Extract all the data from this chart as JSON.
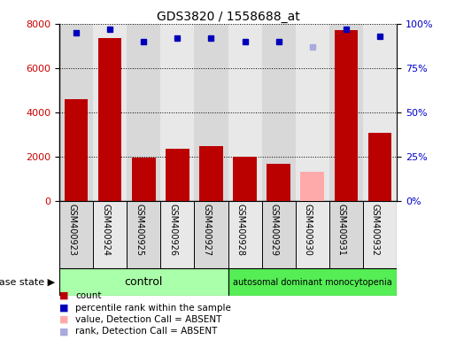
{
  "title": "GDS3820 / 1558688_at",
  "samples": [
    "GSM400923",
    "GSM400924",
    "GSM400925",
    "GSM400926",
    "GSM400927",
    "GSM400928",
    "GSM400929",
    "GSM400930",
    "GSM400931",
    "GSM400932"
  ],
  "count_values": [
    4600,
    7350,
    1950,
    2350,
    2450,
    2000,
    1650,
    null,
    7700,
    3050
  ],
  "count_absent_values": [
    null,
    null,
    null,
    null,
    null,
    null,
    null,
    1300,
    null,
    null
  ],
  "percentile_values": [
    95,
    97,
    90,
    92,
    92,
    90,
    90,
    null,
    97,
    93
  ],
  "percentile_absent_values": [
    null,
    null,
    null,
    null,
    null,
    null,
    null,
    87,
    null,
    null
  ],
  "ylim_left": [
    0,
    8000
  ],
  "ylim_right": [
    0,
    100
  ],
  "yticks_left": [
    0,
    2000,
    4000,
    6000,
    8000
  ],
  "yticks_right": [
    0,
    25,
    50,
    75,
    100
  ],
  "ytick_labels_right": [
    "0%",
    "25%",
    "50%",
    "75%",
    "100%"
  ],
  "n_control": 5,
  "n_disease": 5,
  "control_label": "control",
  "disease_label": "autosomal dominant monocytopenia",
  "disease_state_label": "disease state",
  "bar_color_present": "#bb0000",
  "bar_color_absent": "#ffaaaa",
  "dot_color_present": "#0000bb",
  "dot_color_absent": "#aaaadd",
  "col_bg_even": "#d8d8d8",
  "col_bg_odd": "#e8e8e8",
  "control_bg": "#aaffaa",
  "disease_bg": "#55ee55",
  "legend_items": [
    {
      "label": "count",
      "color": "#bb0000"
    },
    {
      "label": "percentile rank within the sample",
      "color": "#0000bb"
    },
    {
      "label": "value, Detection Call = ABSENT",
      "color": "#ffaaaa"
    },
    {
      "label": "rank, Detection Call = ABSENT",
      "color": "#aaaadd"
    }
  ],
  "background_color": "#ffffff",
  "tick_color_left": "#cc0000",
  "tick_color_right": "#0000cc"
}
